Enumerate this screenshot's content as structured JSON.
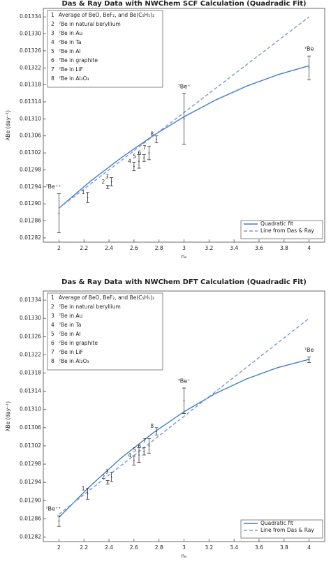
{
  "chart_data": [
    {
      "type": "errorbar",
      "title": "Das & Ray Data with NWChem SCF Calculation (Quadradic Fit)",
      "xlabel": "nₑ",
      "ylabel": "λBe (day⁻¹)",
      "xlim": [
        1.875,
        4.125
      ],
      "ylim": [
        0.01281,
        0.01336
      ],
      "xticks": [
        2,
        2.2,
        2.4,
        2.6,
        2.8,
        3,
        3.2,
        3.4,
        3.6,
        3.8,
        4
      ],
      "yticks": [
        0.01282,
        0.01286,
        {
          "value": 0.0129,
          "label": "0.01290"
        },
        0.01294,
        0.01298,
        0.01302,
        0.01306,
        {
          "value": 0.0131,
          "label": "0.01310"
        },
        0.01314,
        0.01318,
        0.01322,
        0.01326,
        {
          "value": 0.0133,
          "label": "0.01330"
        },
        0.01334
      ],
      "points": {
        "color": "#333333",
        "labels": [
          "⁷Be⁺⁺",
          "1",
          "2",
          "3",
          "4",
          "5",
          "6",
          "7",
          "8",
          "⁷Be⁺",
          "⁷Be"
        ],
        "x": [
          2,
          2.23,
          2.39,
          2.42,
          2.6,
          2.64,
          2.68,
          2.72,
          2.78,
          3,
          4
        ],
        "values": [
          0.012878,
          0.012915,
          0.01294,
          0.012952,
          0.012988,
          0.013,
          0.013008,
          0.01302,
          0.013052,
          0.0131,
          0.01322
        ],
        "errors": [
          4.6e-05,
          1.2e-05,
          4e-06,
          1e-05,
          1e-05,
          1.6e-05,
          8e-06,
          1.6e-05,
          8e-06,
          6e-05,
          2.8e-05
        ]
      },
      "series": [
        {
          "name": "Quadratic fit",
          "color": "#3d7fcf",
          "dashed": false,
          "x": [
            2,
            2.25,
            2.5,
            2.75,
            3,
            3.25,
            3.5,
            3.75,
            4
          ],
          "values": [
            0.01289,
            0.012953,
            0.013009,
            0.01306,
            0.013105,
            0.013144,
            0.013177,
            0.013204,
            0.013225
          ]
        },
        {
          "name": "Line from Das & Ray",
          "color": "#7f96d6",
          "dashed": true,
          "x": [
            2,
            4
          ],
          "values": [
            0.01289,
            0.01334
          ]
        }
      ],
      "notes": [
        {
          "key": "1",
          "text": "Average of BeO, BeF₂, and Be(C₅H₅)₂"
        },
        {
          "key": "2",
          "text": "⁷Be in natural beryllium"
        },
        {
          "key": "3",
          "text": "⁷Be in Au"
        },
        {
          "key": "4",
          "text": "⁷Be in Ta"
        },
        {
          "key": "5",
          "text": "⁷Be in Al"
        },
        {
          "key": "6",
          "text": "⁷Be in graphite"
        },
        {
          "key": "7",
          "text": "⁷Be in LiF"
        },
        {
          "key": "8",
          "text": "⁷Be in Al₂O₃"
        }
      ]
    },
    {
      "type": "errorbar",
      "title": "Das & Ray Data with NWChem DFT Calculation (Quadradic Fit)",
      "xlabel": "nₑ",
      "ylabel": "λBe (day⁻¹)",
      "xlim": [
        1.875,
        4.125
      ],
      "ylim": [
        0.01281,
        0.01336
      ],
      "xticks": [
        2,
        2.2,
        2.4,
        2.6,
        2.8,
        3,
        3.2,
        3.4,
        3.6,
        3.8,
        4
      ],
      "yticks": [
        0.01282,
        0.01286,
        {
          "value": 0.0129,
          "label": "0.01290"
        },
        0.01294,
        0.01298,
        0.01302,
        0.01306,
        {
          "value": 0.0131,
          "label": "0.01310"
        },
        0.01314,
        0.01318,
        0.01322,
        0.01326,
        {
          "value": 0.0133,
          "label": "0.01330"
        },
        0.01334
      ],
      "points": {
        "color": "#333333",
        "labels": [
          "⁷Be⁺⁺",
          "1",
          "2",
          "3",
          "4",
          "5",
          "6",
          "7",
          "8",
          "⁷Be⁺",
          "⁷Be"
        ],
        "x": [
          2,
          2.23,
          2.39,
          2.42,
          2.6,
          2.64,
          2.68,
          2.72,
          2.78,
          3,
          4
        ],
        "values": [
          0.012855,
          0.012915,
          0.01294,
          0.012952,
          0.012988,
          0.013,
          0.013008,
          0.01302,
          0.013052,
          0.013119,
          0.013209
        ],
        "errors": [
          1.15e-05,
          1.2e-05,
          4e-06,
          1e-05,
          1e-05,
          1.6e-05,
          8e-06,
          1.6e-05,
          8e-06,
          2.8e-05,
          6e-06
        ]
      },
      "series": [
        {
          "name": "Quadratic fit",
          "color": "#3d7fcf",
          "dashed": false,
          "x": [
            2,
            2.25,
            2.5,
            2.75,
            3,
            3.25,
            3.5,
            3.75,
            4
          ],
          "values": [
            0.012863,
            0.012932,
            0.012994,
            0.013048,
            0.013095,
            0.013135,
            0.013167,
            0.013192,
            0.01321
          ]
        },
        {
          "name": "Line from Das & Ray",
          "color": "#7f96d6",
          "dashed": true,
          "x": [
            2,
            4
          ],
          "values": [
            0.01287,
            0.0133
          ]
        }
      ],
      "notes": [
        {
          "key": "1",
          "text": "Average of BeO, BeF₂, and Be(C₅H₅)₂"
        },
        {
          "key": "2",
          "text": "⁷Be in natural beryllium"
        },
        {
          "key": "3",
          "text": "⁷Be in Au"
        },
        {
          "key": "4",
          "text": "⁷Be in Ta"
        },
        {
          "key": "5",
          "text": "⁷Be in Al"
        },
        {
          "key": "6",
          "text": "⁷Be in graphite"
        },
        {
          "key": "7",
          "text": "⁷Be in LiF"
        },
        {
          "key": "8",
          "text": "⁷Be in Al₂O₃"
        }
      ]
    }
  ]
}
